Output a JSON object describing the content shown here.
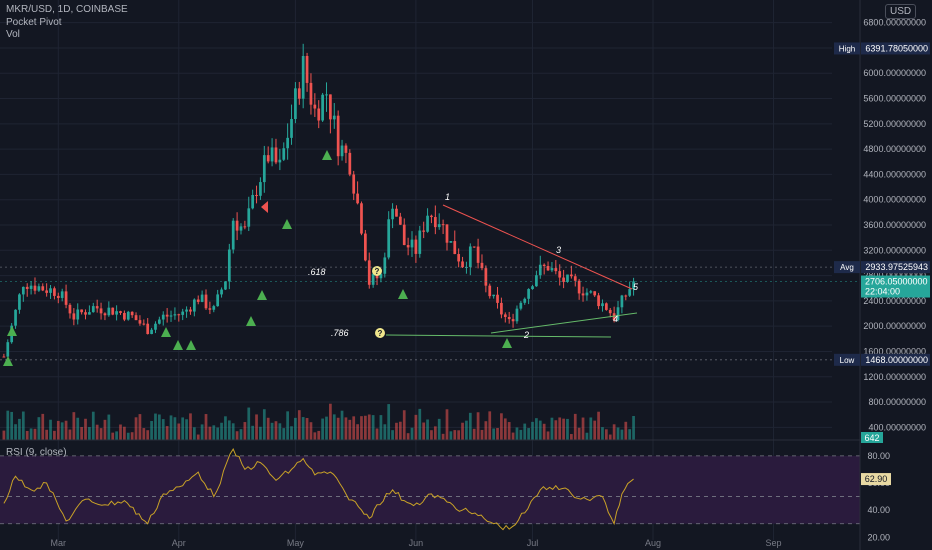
{
  "header": {
    "symbol_line": "MKR/USD, 1D, COINBASE",
    "indicator_1": "Pocket Pivot",
    "indicator_2": "Vol",
    "currency": "USD"
  },
  "rsi_label": "RSI (9, close)",
  "markers": {
    "high_label": "High",
    "high_value": "6391.78050000",
    "avg_label": "Avg",
    "avg_value": "2933.97525943",
    "current_price": "2706.05000000",
    "countdown": "22:04:00",
    "low_label": "Low",
    "low_value": "1468.00000000",
    "volume_value": "642",
    "rsi_value": "62.90"
  },
  "annotations": {
    "fib_618": ".618",
    "fib_786": ".786",
    "q_mark": "?",
    "wave_labels": [
      "1",
      "2",
      "3",
      "4",
      "5"
    ]
  },
  "colors": {
    "background": "#131722",
    "up": "#26a69a",
    "down": "#ef5350",
    "triangle": "#4caf50",
    "trend_upper": "#ef5350",
    "trend_lower": "#66bb6a",
    "rsi_line": "#c9a227",
    "rsi_band": "#2a1b3d",
    "label_bg": "#1e2a4a",
    "current_bg": "#26a69a"
  },
  "chart_data": [
    {
      "type": "candlestick",
      "title": "MKR/USD, 1D, COINBASE",
      "y_axis_ticks": [
        400,
        800,
        1200,
        1600,
        2000,
        2400,
        2800,
        3200,
        3600,
        4000,
        4400,
        4800,
        5200,
        5600,
        6000,
        6400,
        6800
      ],
      "ylim": [
        200,
        7000
      ],
      "x_axis_ticks": [
        "Mar",
        "Apr",
        "May",
        "Jun",
        "Jul",
        "Aug",
        "Sep"
      ],
      "series": [
        {
          "x": "Feb 15",
          "close": 1520
        },
        {
          "x": "Feb 20",
          "close": 2700
        },
        {
          "x": "Feb 25",
          "close": 2600
        },
        {
          "x": "Mar 1",
          "close": 2550
        },
        {
          "x": "Mar 5",
          "close": 2150
        },
        {
          "x": "Mar 10",
          "close": 2300
        },
        {
          "x": "Mar 15",
          "close": 2250
        },
        {
          "x": "Mar 20",
          "close": 2150
        },
        {
          "x": "Mar 24",
          "close": 1950
        },
        {
          "x": "Mar 28",
          "close": 2150
        },
        {
          "x": "Apr 2",
          "close": 2200
        },
        {
          "x": "Apr 6",
          "close": 2450
        },
        {
          "x": "Apr 10",
          "close": 2250
        },
        {
          "x": "Apr 13",
          "close": 2750
        },
        {
          "x": "Apr 15",
          "close": 3700
        },
        {
          "x": "Apr 18",
          "close": 3500
        },
        {
          "x": "Apr 21",
          "close": 4200
        },
        {
          "x": "Apr 24",
          "close": 4700
        },
        {
          "x": "Apr 27",
          "close": 4500
        },
        {
          "x": "Apr 30",
          "close": 5300
        },
        {
          "x": "May 3",
          "close": 6100
        },
        {
          "x": "May 6",
          "close": 5400
        },
        {
          "x": "May 9",
          "close": 5700
        },
        {
          "x": "May 12",
          "close": 4900
        },
        {
          "x": "May 15",
          "close": 4600
        },
        {
          "x": "May 18",
          "close": 3600
        },
        {
          "x": "May 20",
          "close": 2700
        },
        {
          "x": "May 23",
          "close": 2800
        },
        {
          "x": "May 26",
          "close": 4000
        },
        {
          "x": "May 29",
          "close": 3300
        },
        {
          "x": "Jun 1",
          "close": 3200
        },
        {
          "x": "Jun 4",
          "close": 3800
        },
        {
          "x": "Jun 7",
          "close": 3700
        },
        {
          "x": "Jun 10",
          "close": 3300
        },
        {
          "x": "Jun 13",
          "close": 3000
        },
        {
          "x": "Jun 16",
          "close": 3200
        },
        {
          "x": "Jun 19",
          "close": 2600
        },
        {
          "x": "Jun 22",
          "close": 2300
        },
        {
          "x": "Jun 25",
          "close": 2050
        },
        {
          "x": "Jun 28",
          "close": 2400
        },
        {
          "x": "Jul 2",
          "close": 2850
        },
        {
          "x": "Jul 5",
          "close": 2950
        },
        {
          "x": "Jul 8",
          "close": 2750
        },
        {
          "x": "Jul 12",
          "close": 2650
        },
        {
          "x": "Jul 16",
          "close": 2500
        },
        {
          "x": "Jul 20",
          "close": 2300
        },
        {
          "x": "Jul 22",
          "close": 2150
        },
        {
          "x": "Jul 25",
          "close": 2500
        },
        {
          "x": "Jul 27",
          "close": 2706
        }
      ]
    },
    {
      "type": "line",
      "title": "RSI (9, close)",
      "y_axis_ticks": [
        20,
        40,
        60,
        80
      ],
      "ylim": [
        18,
        88
      ],
      "levels": [
        80,
        50,
        30
      ],
      "series": [
        {
          "x": "Feb 15",
          "value": 45
        },
        {
          "x": "Feb 18",
          "value": 65
        },
        {
          "x": "Feb 22",
          "value": 55
        },
        {
          "x": "Feb 26",
          "value": 60
        },
        {
          "x": "Mar 3",
          "value": 32
        },
        {
          "x": "Mar 8",
          "value": 48
        },
        {
          "x": "Mar 13",
          "value": 44
        },
        {
          "x": "Mar 18",
          "value": 47
        },
        {
          "x": "Mar 24",
          "value": 30
        },
        {
          "x": "Mar 28",
          "value": 52
        },
        {
          "x": "Apr 2",
          "value": 58
        },
        {
          "x": "Apr 6",
          "value": 68
        },
        {
          "x": "Apr 10",
          "value": 50
        },
        {
          "x": "Apr 15",
          "value": 85
        },
        {
          "x": "Apr 18",
          "value": 70
        },
        {
          "x": "Apr 22",
          "value": 75
        },
        {
          "x": "Apr 26",
          "value": 62
        },
        {
          "x": "Apr 30",
          "value": 70
        },
        {
          "x": "May 3",
          "value": 78
        },
        {
          "x": "May 6",
          "value": 66
        },
        {
          "x": "May 10",
          "value": 68
        },
        {
          "x": "May 14",
          "value": 52
        },
        {
          "x": "May 18",
          "value": 40
        },
        {
          "x": "May 20",
          "value": 34
        },
        {
          "x": "May 22",
          "value": 44
        },
        {
          "x": "May 26",
          "value": 55
        },
        {
          "x": "May 29",
          "value": 47
        },
        {
          "x": "Jun 2",
          "value": 44
        },
        {
          "x": "Jun 5",
          "value": 52
        },
        {
          "x": "Jun 9",
          "value": 46
        },
        {
          "x": "Jun 13",
          "value": 40
        },
        {
          "x": "Jun 17",
          "value": 36
        },
        {
          "x": "Jun 21",
          "value": 30
        },
        {
          "x": "Jun 25",
          "value": 26
        },
        {
          "x": "Jun 29",
          "value": 38
        },
        {
          "x": "Jul 3",
          "value": 55
        },
        {
          "x": "Jul 7",
          "value": 58
        },
        {
          "x": "Jul 11",
          "value": 52
        },
        {
          "x": "Jul 15",
          "value": 48
        },
        {
          "x": "Jul 19",
          "value": 50
        },
        {
          "x": "Jul 22",
          "value": 30
        },
        {
          "x": "Jul 24",
          "value": 52
        },
        {
          "x": "Jul 27",
          "value": 62.9
        }
      ]
    }
  ]
}
